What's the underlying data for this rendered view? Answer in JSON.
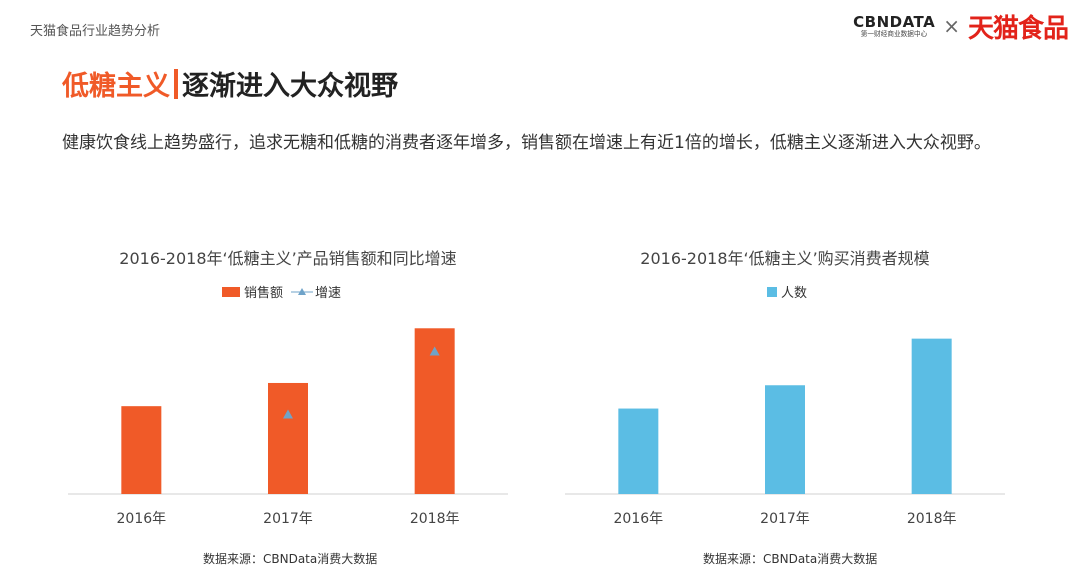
{
  "header": {
    "left_title": "天猫食品行业趋势分析",
    "logo_cbndata": "CBNDATA",
    "logo_cbndata_sub": "第一财经商业数据中心",
    "logo_cross": "×",
    "logo_tmall": "天猫食品"
  },
  "slide": {
    "title_accent": "低糖主义",
    "title_main": "逐渐进入大众视野",
    "intro": "健康饮食线上趋势盛行，追求无糖和低糖的消费者逐年增多，销售额在增速上有近1倍的增长，低糖主义逐渐进入大众视野。"
  },
  "colors": {
    "accent": "#f05a28",
    "bar_orange": "#f05a28",
    "bar_blue": "#5bbde4",
    "triangle": "#6fa3c9"
  },
  "chart_data": [
    {
      "type": "bar",
      "title": "2016-2018年‘低糖主义’产品销售额和同比增速",
      "categories": [
        "2016年",
        "2017年",
        "2018年"
      ],
      "series": [
        {
          "name": "销售额",
          "kind": "bar",
          "values": [
            53,
            67,
            100
          ]
        },
        {
          "name": "增速",
          "kind": "marker",
          "values": [
            null,
            48,
            86
          ]
        }
      ],
      "ylim": [
        0,
        105
      ],
      "grid": false,
      "legend": "top-center",
      "source": "数据来源：CBNData消费大数据"
    },
    {
      "type": "bar",
      "title": "2016-2018年‘低糖主义’购买消费者规模",
      "categories": [
        "2016年",
        "2017年",
        "2018年"
      ],
      "series": [
        {
          "name": "人数",
          "kind": "bar",
          "values": [
            55,
            70,
            100
          ]
        }
      ],
      "ylim": [
        0,
        112
      ],
      "grid": false,
      "legend": "top-center",
      "source": "数据来源：CBNData消费大数据"
    }
  ]
}
